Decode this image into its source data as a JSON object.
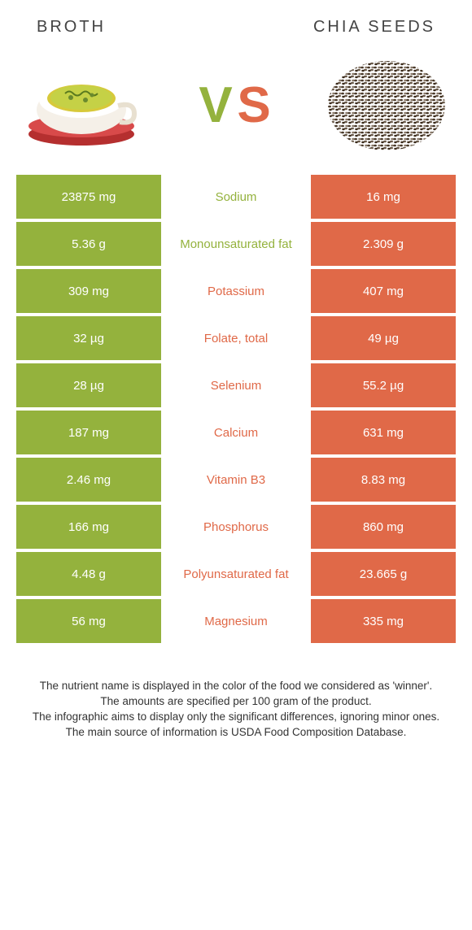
{
  "header": {
    "left_label": "BROTH",
    "right_label": "CHIA SEEDS"
  },
  "colors": {
    "left_bg": "#94b23d",
    "right_bg": "#e06948",
    "left_text": "#94b23d",
    "right_text": "#e06948",
    "white": "#ffffff"
  },
  "vs": {
    "v": "V",
    "s": "S",
    "v_color": "#94b23d",
    "s_color": "#e06948"
  },
  "rows": [
    {
      "left": "23875 mg",
      "mid": "Sodium",
      "right": "16 mg",
      "winner": "left"
    },
    {
      "left": "5.36 g",
      "mid": "Monounsaturated fat",
      "right": "2.309 g",
      "winner": "left"
    },
    {
      "left": "309 mg",
      "mid": "Potassium",
      "right": "407 mg",
      "winner": "right"
    },
    {
      "left": "32 µg",
      "mid": "Folate, total",
      "right": "49 µg",
      "winner": "right"
    },
    {
      "left": "28 µg",
      "mid": "Selenium",
      "right": "55.2 µg",
      "winner": "right"
    },
    {
      "left": "187 mg",
      "mid": "Calcium",
      "right": "631 mg",
      "winner": "right"
    },
    {
      "left": "2.46 mg",
      "mid": "Vitamin B3",
      "right": "8.83 mg",
      "winner": "right"
    },
    {
      "left": "166 mg",
      "mid": "Phosphorus",
      "right": "860 mg",
      "winner": "right"
    },
    {
      "left": "4.48 g",
      "mid": "Polyunsaturated fat",
      "right": "23.665 g",
      "winner": "right"
    },
    {
      "left": "56 mg",
      "mid": "Magnesium",
      "right": "335 mg",
      "winner": "right"
    }
  ],
  "footer": {
    "line1": "The nutrient name is displayed in the color of the food we considered as 'winner'.",
    "line2": "The amounts are specified per 100 gram of the product.",
    "line3": "The infographic aims to display only the significant differences, ignoring minor ones.",
    "line4": "The main source of information is USDA Food Composition Database."
  }
}
